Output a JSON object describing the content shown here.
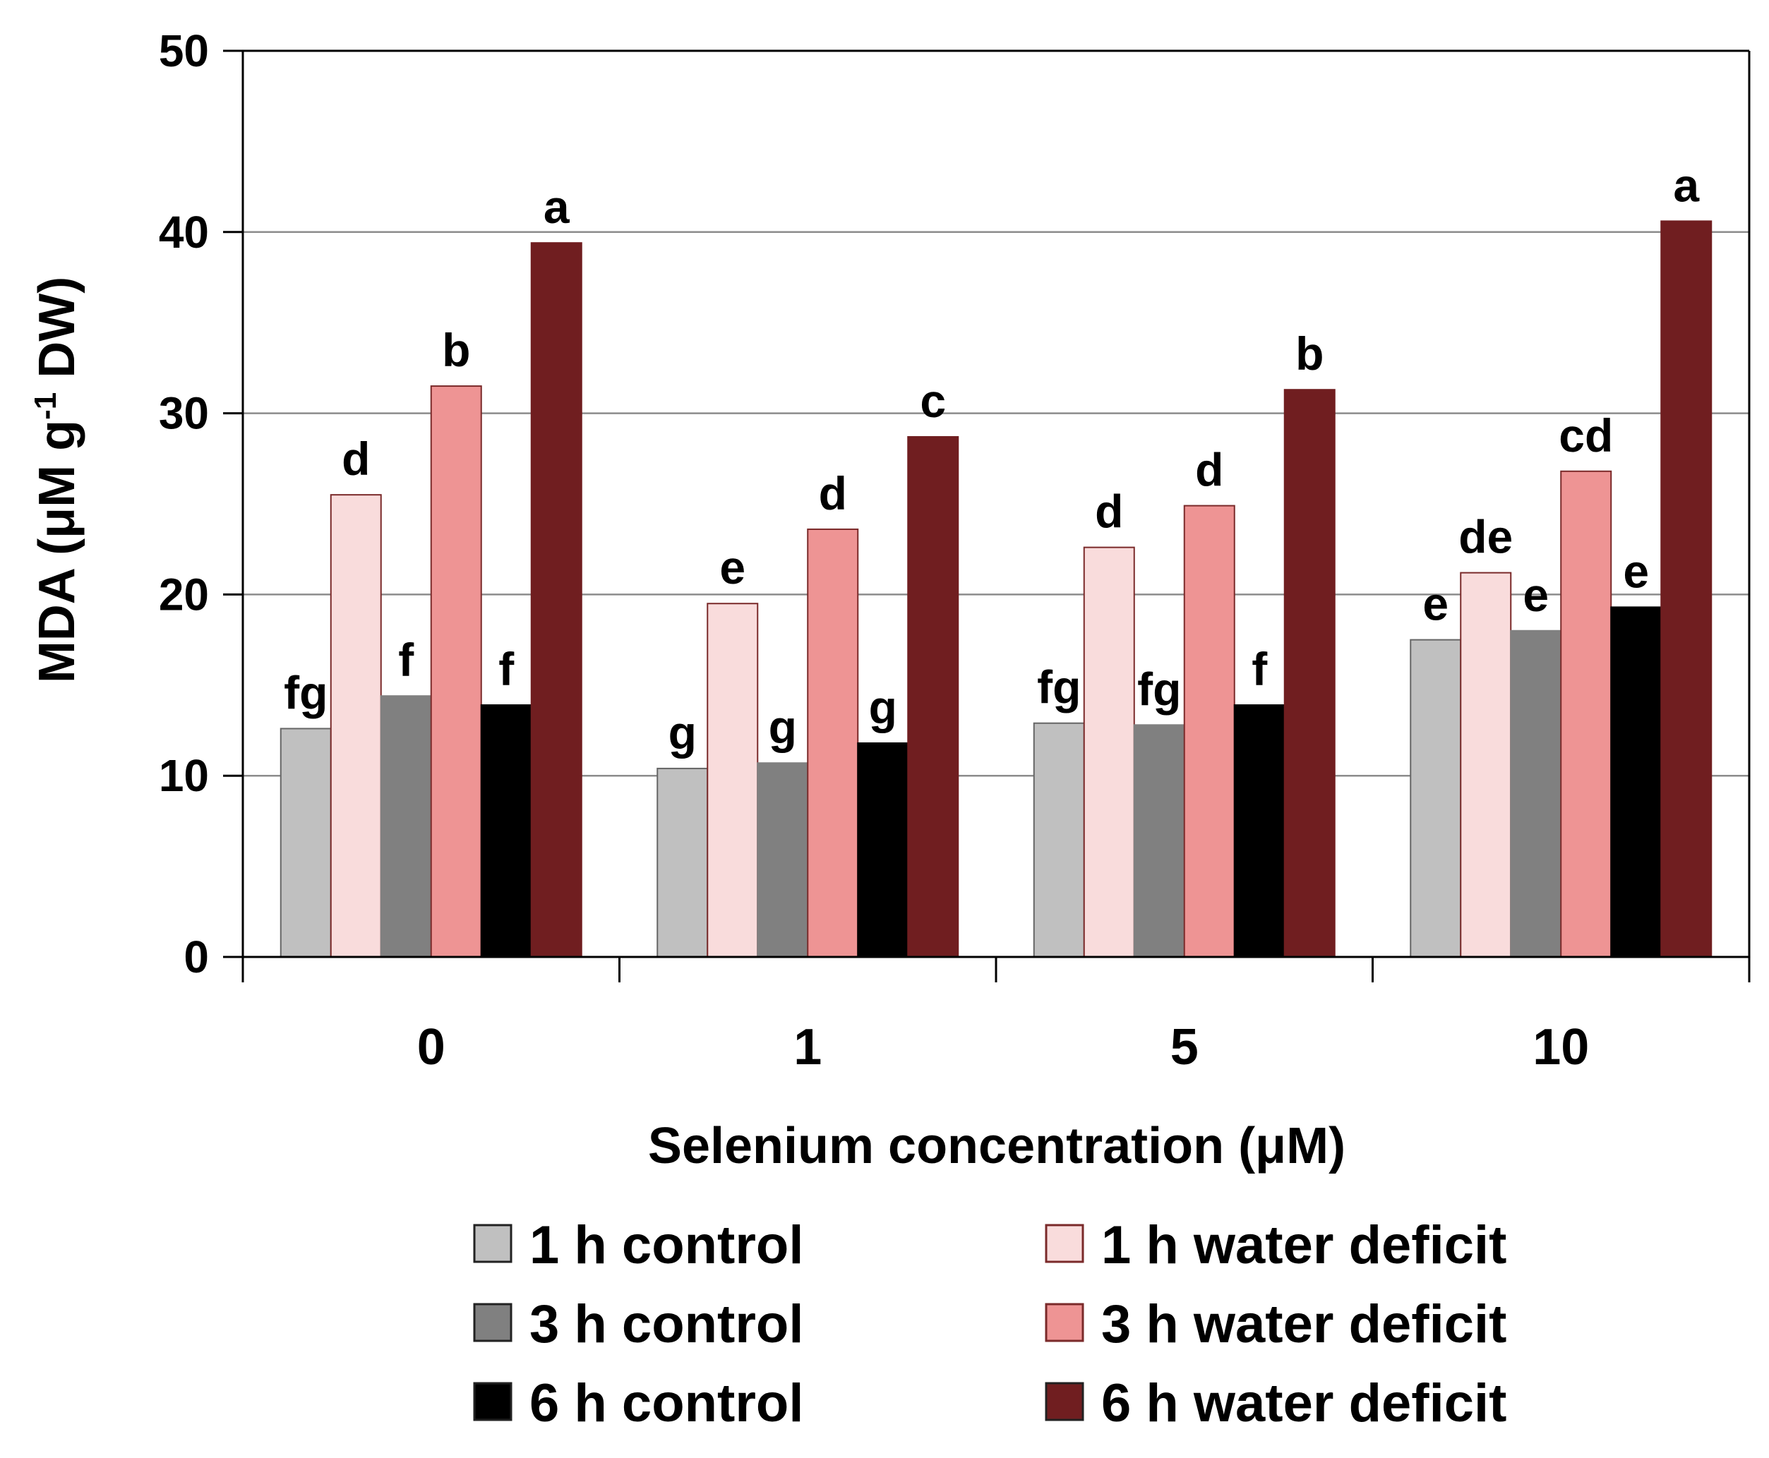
{
  "chart_data": {
    "type": "bar",
    "title": "",
    "xlabel": "Selenium concentration (μM)",
    "ylabel": {
      "prefix": "MDA (μM g",
      "sup": "-1",
      "suffix": " DW)"
    },
    "ylim": [
      0,
      50
    ],
    "yticks": [
      0,
      10,
      20,
      30,
      40,
      50
    ],
    "grid": true,
    "legend_position": "bottom",
    "categories": [
      "0",
      "1",
      "5",
      "10"
    ],
    "series": [
      {
        "name": "1 h control",
        "color": "#C0C0C0",
        "values": [
          12.6,
          10.4,
          12.9,
          17.5
        ],
        "labels": [
          "fg",
          "g",
          "fg",
          "e"
        ]
      },
      {
        "name": "1 h water deficit",
        "color": "#F9DCDC",
        "values": [
          25.5,
          19.5,
          22.6,
          21.2
        ],
        "labels": [
          "d",
          "e",
          "d",
          "de"
        ]
      },
      {
        "name": "3 h control",
        "color": "#808080",
        "values": [
          14.4,
          10.7,
          12.8,
          18.0
        ],
        "labels": [
          "f",
          "g",
          "fg",
          "e"
        ]
      },
      {
        "name": "3 h water deficit",
        "color": "#EE9494",
        "values": [
          31.5,
          23.6,
          24.9,
          26.8
        ],
        "labels": [
          "b",
          "d",
          "d",
          "cd"
        ]
      },
      {
        "name": "6 h control",
        "color": "#000000",
        "values": [
          13.9,
          11.8,
          13.9,
          19.3
        ],
        "labels": [
          "f",
          "g",
          "f",
          "e"
        ]
      },
      {
        "name": "6 h water deficit",
        "color": "#701E20",
        "values": [
          39.4,
          28.7,
          31.3,
          40.6
        ],
        "labels": [
          "a",
          "c",
          "b",
          "a"
        ]
      }
    ]
  }
}
